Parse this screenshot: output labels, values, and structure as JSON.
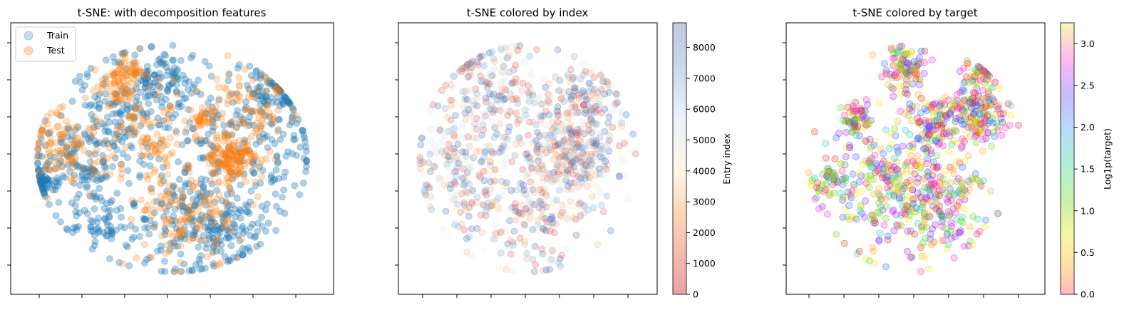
{
  "chart_data": [
    {
      "type": "scatter",
      "title": "t-SNE: with decomposition features",
      "legend": {
        "placement": "top-left",
        "entries": [
          "Train",
          "Test"
        ]
      },
      "series": [
        {
          "name": "Train",
          "color": "#1f77b4",
          "alpha": 0.35,
          "clusters": [
            [
              -35,
              -5,
              10,
              160
            ],
            [
              -15,
              25,
              12,
              180
            ],
            [
              10,
              -25,
              14,
              200
            ],
            [
              30,
              10,
              15,
              180
            ],
            [
              0,
              35,
              6,
              60
            ],
            [
              -48,
              -10,
              3,
              40
            ],
            [
              20,
              -35,
              8,
              80
            ],
            [
              40,
              30,
              6,
              60
            ],
            [
              -25,
              -30,
              6,
              60
            ]
          ]
        },
        {
          "name": "Test",
          "color": "#ff7f0e",
          "alpha": 0.25,
          "clusters": [
            [
              22,
              0,
              5,
              160
            ],
            [
              -20,
              32,
              5,
              60
            ],
            [
              5,
              -25,
              10,
              140
            ],
            [
              -40,
              5,
              8,
              100
            ],
            [
              28,
              25,
              8,
              80
            ],
            [
              -10,
              10,
              10,
              100
            ],
            [
              -15,
              40,
              3,
              40
            ],
            [
              12,
              18,
              3,
              40
            ]
          ]
        }
      ],
      "xlim": [
        -60,
        60
      ],
      "ylim": [
        -60,
        60
      ],
      "x_tick_labels": "hidden",
      "y_tick_labels": "hidden",
      "grid": false
    },
    {
      "type": "scatter",
      "title": "t-SNE colored by index",
      "colormap": "RdYlBu (reversed-ish: red=0, blue=8000)",
      "colors": [
        "#d8443c",
        "#f2a67a",
        "#fff3cf",
        "#cfe4ef",
        "#6d9bc9",
        "#2b55a8"
      ],
      "colorbar": {
        "label": "Entry index",
        "ticks": [
          "0",
          "1000",
          "2000",
          "3000",
          "4000",
          "5000",
          "6000",
          "7000",
          "8000"
        ],
        "min": 0,
        "max": 8800
      },
      "clusters": [
        [
          25,
          0,
          8,
          180
        ],
        [
          -20,
          30,
          12,
          220
        ],
        [
          0,
          -20,
          15,
          260
        ],
        [
          -35,
          -5,
          10,
          140
        ],
        [
          30,
          25,
          8,
          120
        ],
        [
          10,
          10,
          15,
          200
        ]
      ],
      "xlim": [
        -60,
        60
      ],
      "ylim": [
        -60,
        60
      ],
      "x_tick_labels": "hidden",
      "y_tick_labels": "hidden",
      "grid": false
    },
    {
      "type": "scatter",
      "title": "t-SNE colored by target",
      "colormap": "hsv-like rainbow",
      "colors": [
        "#e31a1c",
        "#ff9f1a",
        "#f4e900",
        "#58d600",
        "#17c7a0",
        "#1a5cff",
        "#8a1aff",
        "#ff1ab2"
      ],
      "colorbar": {
        "label": "Log1p(target)",
        "ticks": [
          "0.0",
          "0.5",
          "1.0",
          "1.5",
          "2.0",
          "2.5",
          "3.0"
        ],
        "min": 0,
        "max": 3.25
      },
      "clusters": [
        [
          -15,
          -10,
          15,
          280
        ],
        [
          10,
          -20,
          12,
          200
        ],
        [
          28,
          20,
          7,
          180
        ],
        [
          -5,
          40,
          5,
          100
        ],
        [
          -40,
          -10,
          3,
          40
        ],
        [
          -28,
          18,
          4,
          60
        ],
        [
          10,
          15,
          6,
          100
        ],
        [
          30,
          38,
          3,
          40
        ]
      ],
      "xlim": [
        -60,
        60
      ],
      "ylim": [
        -60,
        60
      ],
      "x_tick_labels": "hidden",
      "y_tick_labels": "hidden",
      "grid": false
    }
  ]
}
